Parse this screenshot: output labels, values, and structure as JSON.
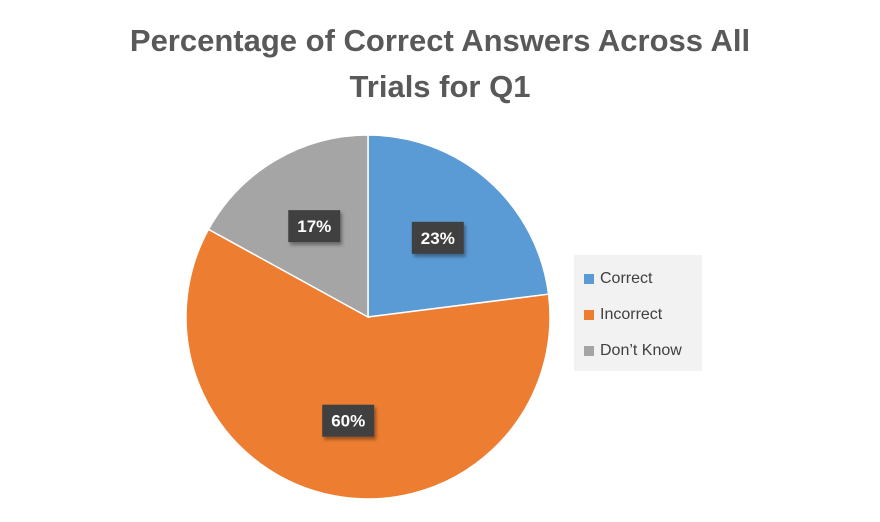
{
  "chart_data": {
    "type": "pie",
    "title_lines": [
      "Percentage of Correct Answers Across All",
      "Trials for Q1"
    ],
    "categories": [
      "Correct",
      "Incorrect",
      "Don’t Know"
    ],
    "values": [
      23,
      60,
      17
    ],
    "data_labels": [
      "23%",
      "60%",
      "17%"
    ],
    "colors": [
      "#5b9bd5",
      "#ed7d31",
      "#a5a5a5"
    ],
    "legend_position": "right",
    "start_angle": "12 o'clock",
    "direction": "clockwise"
  }
}
